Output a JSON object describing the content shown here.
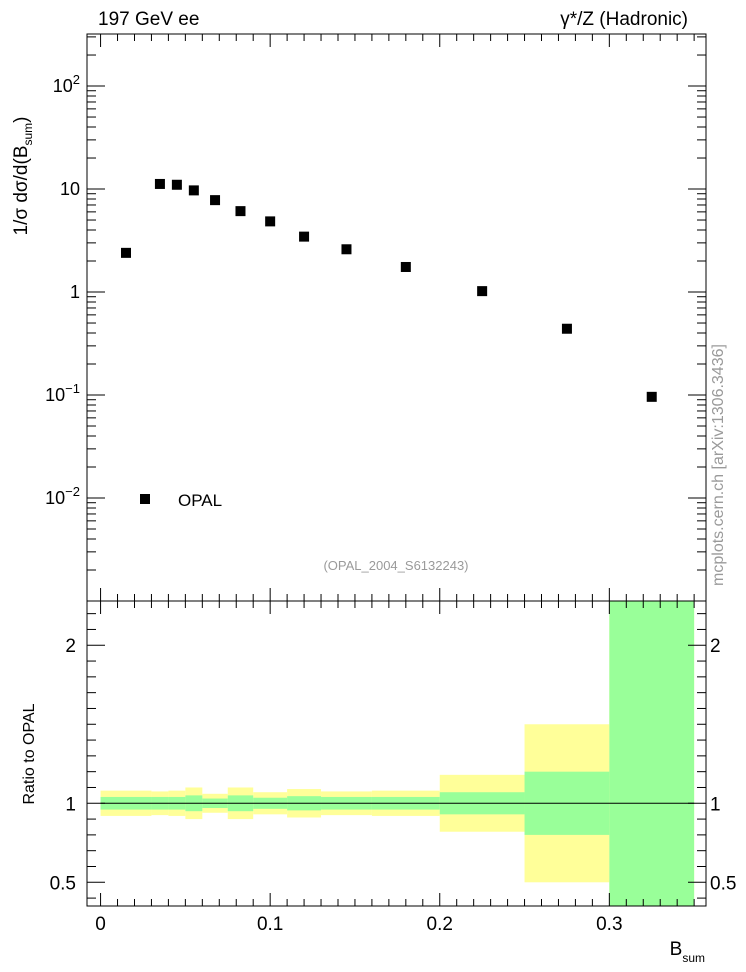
{
  "header": {
    "left": "197 GeV ee",
    "right": "γ*/Z (Hadronic)"
  },
  "watermark": "mcplots.cern.ch [arXiv:1306.3436]",
  "analysis_label": "(OPAL_2004_S6132243)",
  "colors": {
    "band_outer": "#ffff99",
    "band_inner": "#99ff99",
    "marker": "#000000"
  },
  "chart_data": [
    {
      "type": "scatter",
      "panel": "main",
      "y_scale": "log",
      "ylabel_main": "1/σ dσ/d(B",
      "ylabel_sub": "sum",
      "ylabel_end": ")",
      "xlim": [
        -0.008,
        0.357
      ],
      "ylim": [
        0.001,
        320
      ],
      "y_ticks": [
        {
          "v": 0.01,
          "base": "10",
          "exp": "−2"
        },
        {
          "v": 0.1,
          "base": "10",
          "exp": "−1"
        },
        {
          "v": 1,
          "base": "1",
          "exp": ""
        },
        {
          "v": 10,
          "base": "10",
          "exp": ""
        },
        {
          "v": 100,
          "base": "10",
          "exp": "2"
        }
      ],
      "legend": {
        "position": "bottom-left",
        "entries": [
          "OPAL"
        ]
      },
      "series": [
        {
          "name": "OPAL",
          "x": [
            0.015,
            0.035,
            0.045,
            0.055,
            0.0675,
            0.0825,
            0.1,
            0.12,
            0.145,
            0.18,
            0.225,
            0.275,
            0.325
          ],
          "y": [
            2.4,
            11.2,
            11.0,
            9.7,
            7.8,
            6.1,
            4.85,
            3.45,
            2.6,
            1.75,
            1.02,
            0.44,
            0.096
          ]
        }
      ]
    },
    {
      "type": "area",
      "panel": "ratio",
      "ylabel": "Ratio to OPAL",
      "xlabel_main": "B",
      "xlabel_sub": "sum",
      "xlim": [
        -0.008,
        0.357
      ],
      "ylim": [
        0.35,
        2.28
      ],
      "x_ticks": [
        0,
        0.1,
        0.2,
        0.3
      ],
      "x_tick_labels": [
        "0",
        "0.1",
        "0.2",
        "0.3"
      ],
      "y_ticks": [
        0.5,
        1,
        2
      ],
      "y_tick_labels": [
        "0.5",
        "1",
        "2"
      ],
      "reference_line": 1,
      "bins": [
        {
          "lo": 0.0,
          "hi": 0.03,
          "outer": [
            0.92,
            1.08
          ],
          "inner": [
            0.96,
            1.04
          ]
        },
        {
          "lo": 0.03,
          "hi": 0.04,
          "outer": [
            0.925,
            1.075
          ],
          "inner": [
            0.96,
            1.04
          ]
        },
        {
          "lo": 0.04,
          "hi": 0.05,
          "outer": [
            0.92,
            1.08
          ],
          "inner": [
            0.96,
            1.04
          ]
        },
        {
          "lo": 0.05,
          "hi": 0.06,
          "outer": [
            0.9,
            1.1
          ],
          "inner": [
            0.95,
            1.05
          ]
        },
        {
          "lo": 0.06,
          "hi": 0.075,
          "outer": [
            0.94,
            1.06
          ],
          "inner": [
            0.97,
            1.03
          ]
        },
        {
          "lo": 0.075,
          "hi": 0.09,
          "outer": [
            0.9,
            1.1
          ],
          "inner": [
            0.95,
            1.05
          ]
        },
        {
          "lo": 0.09,
          "hi": 0.11,
          "outer": [
            0.93,
            1.07
          ],
          "inner": [
            0.965,
            1.035
          ]
        },
        {
          "lo": 0.11,
          "hi": 0.13,
          "outer": [
            0.91,
            1.09
          ],
          "inner": [
            0.955,
            1.045
          ]
        },
        {
          "lo": 0.13,
          "hi": 0.16,
          "outer": [
            0.925,
            1.075
          ],
          "inner": [
            0.96,
            1.04
          ]
        },
        {
          "lo": 0.16,
          "hi": 0.2,
          "outer": [
            0.92,
            1.08
          ],
          "inner": [
            0.96,
            1.04
          ]
        },
        {
          "lo": 0.2,
          "hi": 0.25,
          "outer": [
            0.82,
            1.18
          ],
          "inner": [
            0.93,
            1.07
          ]
        },
        {
          "lo": 0.25,
          "hi": 0.3,
          "outer": [
            0.5,
            1.5
          ],
          "inner": [
            0.8,
            1.2
          ]
        },
        {
          "lo": 0.3,
          "hi": 0.35,
          "outer": [
            0.35,
            2.28
          ],
          "inner": [
            0.35,
            2.28
          ]
        }
      ]
    }
  ]
}
